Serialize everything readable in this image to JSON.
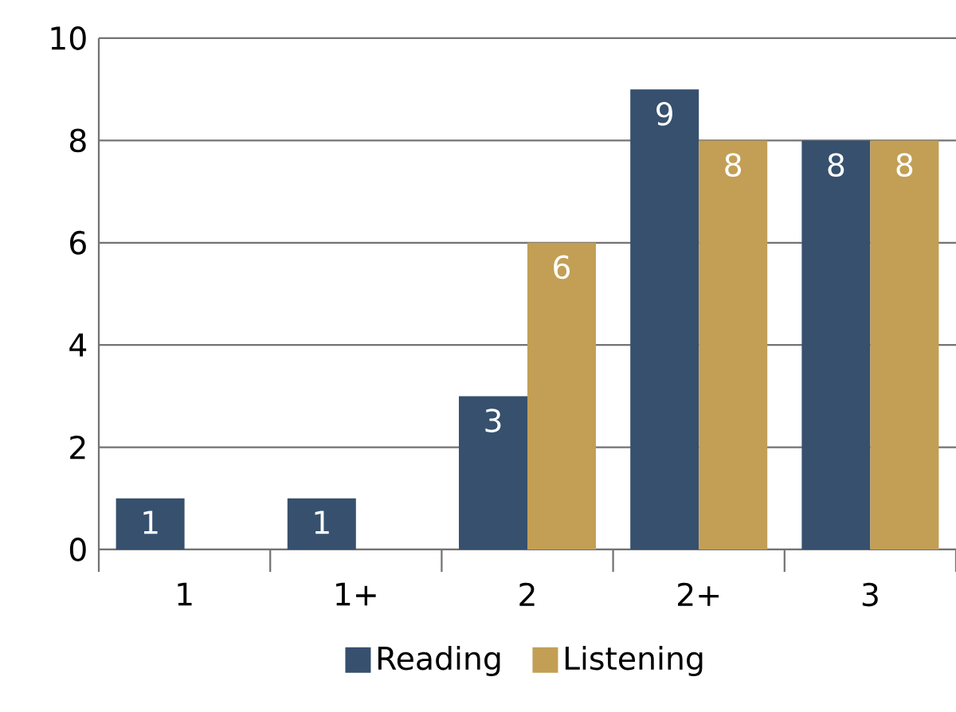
{
  "chart_data": {
    "type": "bar",
    "categories": [
      "1",
      "1+",
      "2",
      "2+",
      "3"
    ],
    "series": [
      {
        "name": "Reading",
        "color": "#36506e",
        "values": [
          1,
          1,
          3,
          9,
          8
        ],
        "value_labels": [
          "1",
          "1",
          "3",
          "9",
          "8"
        ]
      },
      {
        "name": "Listening",
        "color": "#c29f55",
        "values": [
          0,
          0,
          6,
          8,
          8
        ],
        "value_labels": [
          null,
          null,
          "6",
          "8",
          "8"
        ]
      }
    ],
    "ylim": [
      0,
      10
    ],
    "yticks": [
      0,
      2,
      4,
      6,
      8,
      10
    ],
    "grid": "y",
    "legend": "bottom"
  }
}
